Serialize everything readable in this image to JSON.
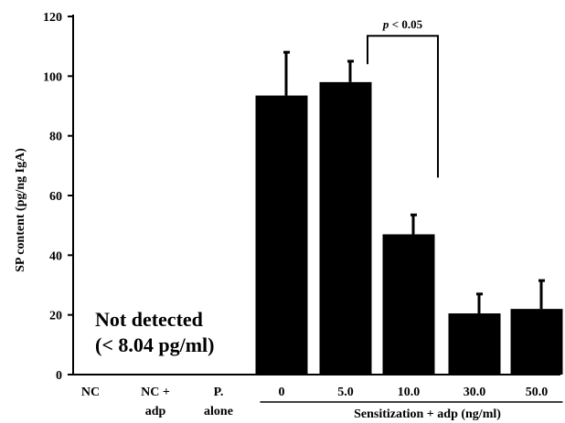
{
  "chart_data": {
    "type": "bar",
    "ylabel": "SP content  (pg/ng IgA)",
    "ylim": [
      0,
      120
    ],
    "yticks": [
      0,
      20,
      40,
      60,
      80,
      100,
      120
    ],
    "categories": [
      {
        "line1": "NC",
        "line2": ""
      },
      {
        "line1": "NC +",
        "line2": "adp"
      },
      {
        "line1": "P.",
        "line2": "alone"
      },
      {
        "line1": "0",
        "line2": ""
      },
      {
        "line1": "5.0",
        "line2": ""
      },
      {
        "line1": "10.0",
        "line2": ""
      },
      {
        "line1": "30.0",
        "line2": ""
      },
      {
        "line1": "50.0",
        "line2": ""
      }
    ],
    "values": [
      null,
      null,
      null,
      93.5,
      98,
      47,
      20.5,
      22
    ],
    "errors": [
      null,
      null,
      null,
      14.5,
      7,
      6.5,
      6.5,
      9.5
    ],
    "group_label": "Sensitization  + adp (ng/ml)",
    "not_detected_line1": "Not detected",
    "not_detected_line2": "(< 8.04 pg/ml)",
    "significance": {
      "prefix": "p",
      "text": " < 0.05",
      "between": [
        4,
        5
      ]
    },
    "bar_color": "#000000"
  }
}
